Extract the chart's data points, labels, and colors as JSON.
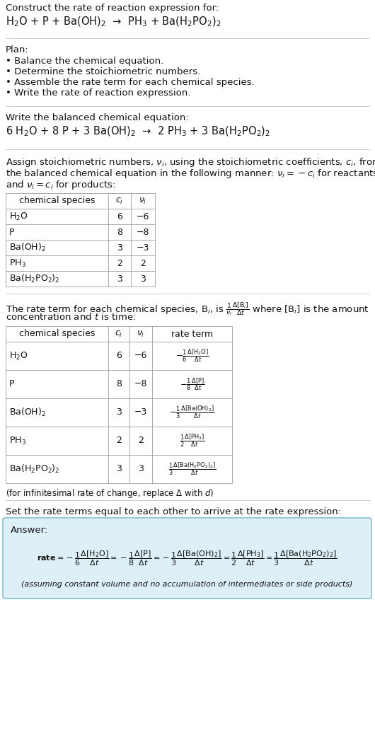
{
  "title_line1": "Construct the rate of reaction expression for:",
  "title_line2": "H$_2$O + P + Ba(OH)$_2$  →  PH$_3$ + Ba(H$_2$PO$_2$)$_2$",
  "plan_header": "Plan:",
  "plan_items": [
    "• Balance the chemical equation.",
    "• Determine the stoichiometric numbers.",
    "• Assemble the rate term for each chemical species.",
    "• Write the rate of reaction expression."
  ],
  "balanced_header": "Write the balanced chemical equation:",
  "balanced_eq": "6 H$_2$O + 8 P + 3 Ba(OH)$_2$  →  2 PH$_3$ + 3 Ba(H$_2$PO$_2$)$_2$",
  "stoich_header_lines": [
    "Assign stoichiometric numbers, $\\nu_i$, using the stoichiometric coefficients, $c_i$, from",
    "the balanced chemical equation in the following manner: $\\nu_i = -c_i$ for reactants",
    "and $\\nu_i = c_i$ for products:"
  ],
  "table1_col_headers": [
    "chemical species",
    "$c_i$",
    "$\\nu_i$"
  ],
  "table1_rows": [
    [
      "H$_2$O",
      "6",
      "−6"
    ],
    [
      "P",
      "8",
      "−8"
    ],
    [
      "Ba(OH)$_2$",
      "3",
      "−3"
    ],
    [
      "PH$_3$",
      "2",
      "2"
    ],
    [
      "Ba(H$_2$PO$_2$)$_2$",
      "3",
      "3"
    ]
  ],
  "rate_header_lines": [
    "The rate term for each chemical species, B$_i$, is $\\frac{1}{\\nu_i}\\frac{\\Delta[\\mathrm{B}_i]}{\\Delta t}$ where [B$_i$] is the amount",
    "concentration and $t$ is time:"
  ],
  "table2_col_headers": [
    "chemical species",
    "$c_i$",
    "$\\nu_i$",
    "rate term"
  ],
  "table2_rows": [
    [
      "H$_2$O",
      "6",
      "−6",
      "$-\\frac{1}{6}\\frac{\\Delta[\\mathrm{H_2O}]}{\\Delta t}$"
    ],
    [
      "P",
      "8",
      "−8",
      "$-\\frac{1}{8}\\frac{\\Delta[\\mathrm{P}]}{\\Delta t}$"
    ],
    [
      "Ba(OH)$_2$",
      "3",
      "−3",
      "$-\\frac{1}{3}\\frac{\\Delta[\\mathrm{Ba(OH)_2}]}{\\Delta t}$"
    ],
    [
      "PH$_3$",
      "2",
      "2",
      "$\\frac{1}{2}\\frac{\\Delta[\\mathrm{PH_3}]}{\\Delta t}$"
    ],
    [
      "Ba(H$_2$PO$_2$)$_2$",
      "3",
      "3",
      "$\\frac{1}{3}\\frac{\\Delta[\\mathrm{Ba(H_2PO_2)_2}]}{\\Delta t}$"
    ]
  ],
  "infinitesimal_note": "(for infinitesimal rate of change, replace Δ with $d$)",
  "set_equal_header": "Set the rate terms equal to each other to arrive at the rate expression:",
  "answer_label": "Answer:",
  "answer_box_facecolor": "#ddf0f7",
  "answer_box_edgecolor": "#88c0d0",
  "answer_note": "(assuming constant volume and no accumulation of intermediates or side products)",
  "bg_color": "#ffffff",
  "text_color": "#111111",
  "table_line_color": "#aaaaaa",
  "sep_color": "#cccccc",
  "font_size": 9.5
}
